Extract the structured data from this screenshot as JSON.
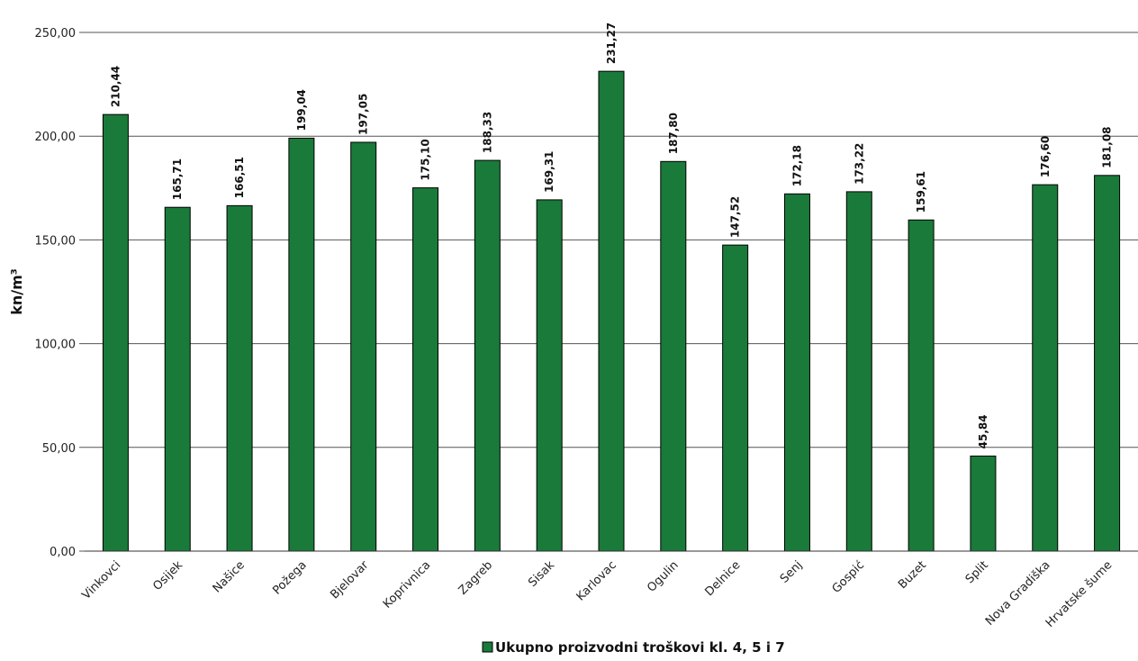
{
  "chart_data": {
    "type": "bar",
    "title": "",
    "ylabel": "kn/m³",
    "xlabel": "",
    "ylim": [
      0,
      250
    ],
    "yticks": [
      "0,00",
      "50,00",
      "100,00",
      "150,00",
      "200,00",
      "250,00"
    ],
    "grid": true,
    "legend_position": "bottom",
    "categories": [
      "Vinkovci",
      "Osijek",
      "Našice",
      "Požega",
      "Bjelovar",
      "Koprivnica",
      "Zagreb",
      "Sisak",
      "Karlovac",
      "Ogulin",
      "Delnice",
      "Senj",
      "Gospić",
      "Buzet",
      "Split",
      "Nova Gradiška",
      "Hrvatske šume"
    ],
    "series": [
      {
        "name": "Ukupno proizvodni troškovi kl. 4, 5 i 7",
        "color": "#1a7a3a",
        "values": [
          210.44,
          165.71,
          166.51,
          199.04,
          197.05,
          175.1,
          188.33,
          169.31,
          231.27,
          187.8,
          147.52,
          172.18,
          173.22,
          159.61,
          45.84,
          176.6,
          181.08
        ],
        "labels": [
          "210,44",
          "165,71",
          "166,51",
          "199,04",
          "197,05",
          "175,10",
          "188,33",
          "169,31",
          "231,27",
          "187,80",
          "147,52",
          "172,18",
          "173,22",
          "159,61",
          "45,84",
          "176,60",
          "181,08"
        ]
      }
    ]
  }
}
